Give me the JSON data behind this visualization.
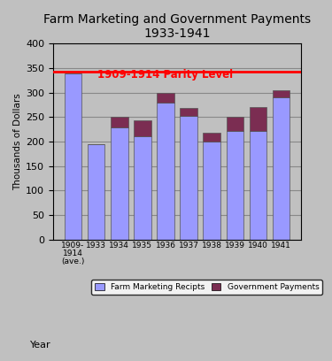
{
  "title": "Farm Marketing and Government Payments\n1933-1941",
  "ylabel": "Thousands of Dollars",
  "xlabel": "Year",
  "categories": [
    "1909-\n1914\n(ave.)",
    "1933",
    "1934",
    "1935",
    "1936",
    "1937",
    "1938",
    "1939",
    "1940",
    "1941"
  ],
  "farm_marketing": [
    338,
    195,
    228,
    210,
    280,
    252,
    200,
    222,
    222,
    290
  ],
  "government_payments": [
    0,
    0,
    22,
    33,
    20,
    16,
    17,
    28,
    48,
    15
  ],
  "parity_level": 343,
  "parity_label": "1909-1914 Parity Level",
  "bar_color_farm": "#9999ff",
  "bar_color_gov": "#7b2d52",
  "parity_color": "red",
  "bg_color": "#c0c0c0",
  "ylim": [
    0,
    400
  ],
  "yticks": [
    0,
    50,
    100,
    150,
    200,
    250,
    300,
    350,
    400
  ],
  "legend_farm": "Farm Marketing Recipts",
  "legend_gov": "Government Payments"
}
